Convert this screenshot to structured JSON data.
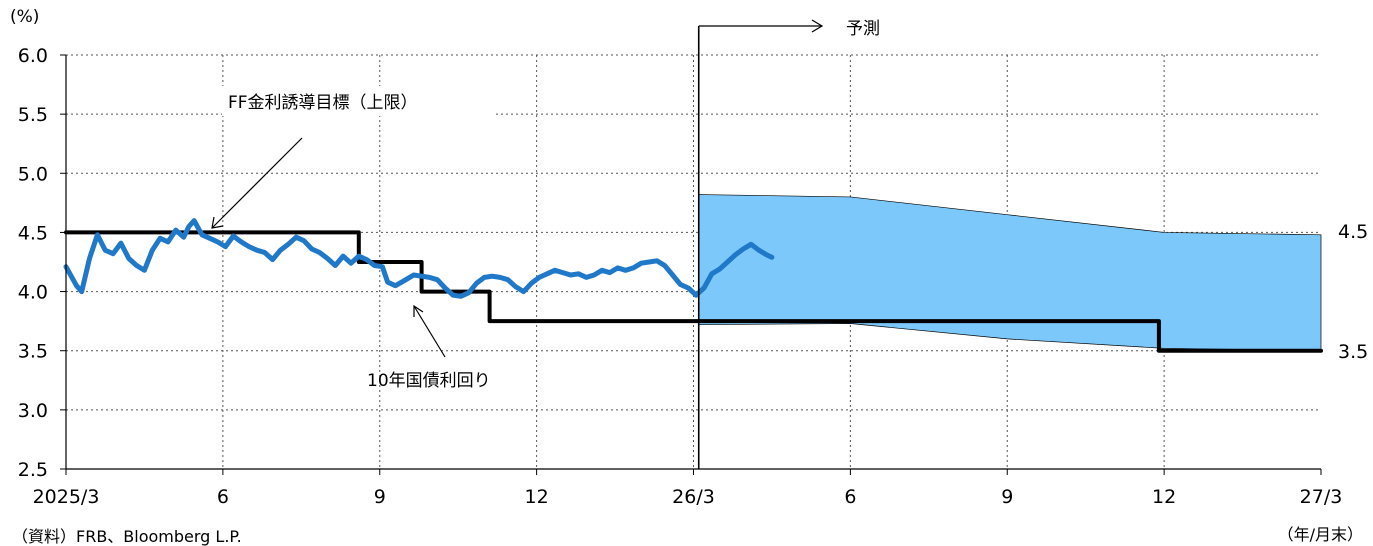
{
  "chart_data": {
    "type": "line",
    "y_unit_label": "(%)",
    "x_unit_label": "（年/月末）",
    "source_label": "（資料）FRB、Bloomberg L.P.",
    "ylim": [
      2.5,
      6.0
    ],
    "yticks": [
      "2.5",
      "3.0",
      "3.5",
      "4.0",
      "4.5",
      "5.0",
      "5.5",
      "6.0"
    ],
    "x_tick_labels": [
      "2025/3",
      "6",
      "9",
      "12",
      "26/3",
      "6",
      "9",
      "12",
      "27/3"
    ],
    "grid": true,
    "forecast_label": "予測",
    "forecast_start_month": 12.1,
    "annotations": {
      "ff_label": "FF金利誘導目標（上限）",
      "yield_label": "10年国債利回り"
    },
    "right_labels": [
      "4.5",
      "3.5"
    ],
    "series": [
      {
        "name": "FF金利誘導目標（上限）",
        "color": "#000000",
        "points": [
          [
            0,
            4.5
          ],
          [
            5.6,
            4.5
          ],
          [
            5.6,
            4.25
          ],
          [
            6.8,
            4.25
          ],
          [
            6.8,
            4.0
          ],
          [
            8.1,
            4.0
          ],
          [
            8.1,
            3.75
          ],
          [
            20.9,
            3.75
          ],
          [
            20.9,
            3.5
          ],
          [
            24,
            3.5
          ]
        ]
      },
      {
        "name": "10年国債利回り",
        "color": "#1f78c8",
        "points": [
          [
            0,
            4.21
          ],
          [
            0.2,
            4.05
          ],
          [
            0.3,
            4.0
          ],
          [
            0.45,
            4.28
          ],
          [
            0.6,
            4.48
          ],
          [
            0.75,
            4.35
          ],
          [
            0.9,
            4.32
          ],
          [
            1.05,
            4.41
          ],
          [
            1.2,
            4.28
          ],
          [
            1.35,
            4.22
          ],
          [
            1.5,
            4.18
          ],
          [
            1.65,
            4.35
          ],
          [
            1.8,
            4.45
          ],
          [
            1.95,
            4.42
          ],
          [
            2.1,
            4.52
          ],
          [
            2.25,
            4.46
          ],
          [
            2.35,
            4.55
          ],
          [
            2.45,
            4.6
          ],
          [
            2.6,
            4.48
          ],
          [
            2.75,
            4.45
          ],
          [
            2.9,
            4.42
          ],
          [
            3.05,
            4.38
          ],
          [
            3.2,
            4.47
          ],
          [
            3.35,
            4.42
          ],
          [
            3.5,
            4.38
          ],
          [
            3.65,
            4.35
          ],
          [
            3.8,
            4.33
          ],
          [
            3.95,
            4.27
          ],
          [
            4.1,
            4.35
          ],
          [
            4.25,
            4.4
          ],
          [
            4.4,
            4.46
          ],
          [
            4.55,
            4.43
          ],
          [
            4.7,
            4.36
          ],
          [
            4.85,
            4.33
          ],
          [
            5.0,
            4.28
          ],
          [
            5.15,
            4.22
          ],
          [
            5.3,
            4.3
          ],
          [
            5.45,
            4.24
          ],
          [
            5.6,
            4.3
          ],
          [
            5.75,
            4.27
          ],
          [
            5.9,
            4.22
          ],
          [
            6.05,
            4.21
          ],
          [
            6.15,
            4.08
          ],
          [
            6.3,
            4.05
          ],
          [
            6.5,
            4.1
          ],
          [
            6.65,
            4.14
          ],
          [
            6.8,
            4.13
          ],
          [
            6.95,
            4.12
          ],
          [
            7.1,
            4.1
          ],
          [
            7.25,
            4.03
          ],
          [
            7.4,
            3.97
          ],
          [
            7.55,
            3.96
          ],
          [
            7.7,
            3.99
          ],
          [
            7.85,
            4.07
          ],
          [
            8.0,
            4.12
          ],
          [
            8.15,
            4.13
          ],
          [
            8.3,
            4.12
          ],
          [
            8.45,
            4.1
          ],
          [
            8.6,
            4.04
          ],
          [
            8.75,
            4.0
          ],
          [
            8.9,
            4.07
          ],
          [
            9.05,
            4.12
          ],
          [
            9.2,
            4.15
          ],
          [
            9.35,
            4.18
          ],
          [
            9.5,
            4.16
          ],
          [
            9.65,
            4.14
          ],
          [
            9.8,
            4.15
          ],
          [
            9.95,
            4.12
          ],
          [
            10.1,
            4.14
          ],
          [
            10.25,
            4.18
          ],
          [
            10.4,
            4.16
          ],
          [
            10.55,
            4.2
          ],
          [
            10.7,
            4.18
          ],
          [
            10.85,
            4.2
          ],
          [
            11.0,
            4.24
          ],
          [
            11.15,
            4.25
          ],
          [
            11.3,
            4.26
          ],
          [
            11.45,
            4.22
          ],
          [
            11.6,
            4.14
          ],
          [
            11.75,
            4.06
          ],
          [
            11.9,
            4.03
          ],
          [
            12.05,
            3.97
          ],
          [
            12.2,
            4.03
          ],
          [
            12.35,
            4.15
          ],
          [
            12.5,
            4.19
          ],
          [
            12.65,
            4.25
          ],
          [
            12.8,
            4.31
          ],
          [
            12.95,
            4.36
          ],
          [
            13.1,
            4.4
          ],
          [
            13.25,
            4.35
          ],
          [
            13.4,
            4.31
          ],
          [
            13.5,
            4.29
          ]
        ]
      }
    ],
    "forecast_band": {
      "upper": [
        [
          12.1,
          4.82
        ],
        [
          15.0,
          4.8
        ],
        [
          18.0,
          4.65
        ],
        [
          21.0,
          4.5
        ],
        [
          24.0,
          4.48
        ]
      ],
      "lower": [
        [
          12.1,
          3.72
        ],
        [
          15.0,
          3.73
        ],
        [
          18.0,
          3.6
        ],
        [
          21.0,
          3.52
        ],
        [
          24.0,
          3.5
        ]
      ],
      "color": "#7cc8fa"
    }
  }
}
